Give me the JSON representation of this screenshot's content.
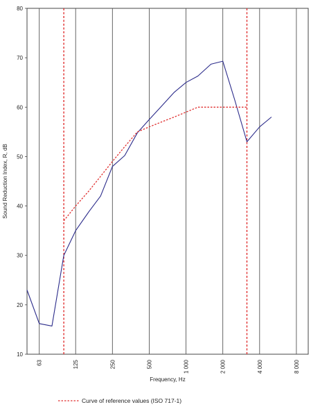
{
  "chart_data": {
    "type": "line",
    "xlabel": "Frequency, Hz",
    "ylabel": "Sound Reduction Index, R, dB",
    "ylim": [
      10,
      80
    ],
    "yticks": [
      10,
      20,
      30,
      40,
      50,
      60,
      70,
      80
    ],
    "x_scale": "log",
    "xlim": [
      50,
      10000
    ],
    "xticks": [
      {
        "value": 63,
        "label": "63"
      },
      {
        "value": 125,
        "label": "125"
      },
      {
        "value": 250,
        "label": "250"
      },
      {
        "value": 500,
        "label": "500"
      },
      {
        "value": 1000,
        "label": "1 000"
      },
      {
        "value": 2000,
        "label": "2 000"
      },
      {
        "value": 4000,
        "label": "4 000"
      },
      {
        "value": 8000,
        "label": "8 000"
      }
    ],
    "grid": {
      "vertical": true,
      "horizontal": false
    },
    "series": [
      {
        "name": "",
        "color": "#2b2b8a",
        "style": "solid",
        "x": [
          50,
          63,
          80,
          100,
          125,
          160,
          200,
          250,
          315,
          400,
          500,
          630,
          800,
          1000,
          1250,
          1600,
          2000,
          2500,
          3150,
          4000,
          5000
        ],
        "y": [
          23,
          16.2,
          15.7,
          30,
          35,
          38.8,
          42,
          48,
          50.2,
          54.8,
          57.5,
          60.2,
          63,
          65,
          66.3,
          68.7,
          69.3,
          61.5,
          53,
          56,
          58
        ]
      },
      {
        "name": "Curve of reference values (ISO 717-1)",
        "color": "#e03030",
        "style": "dotted",
        "x": [
          100,
          125,
          160,
          200,
          250,
          315,
          400,
          500,
          630,
          800,
          1000,
          1250,
          1600,
          2000,
          2500,
          3150
        ],
        "y": [
          37,
          40,
          43,
          46,
          49,
          52,
          55,
          56,
          57,
          58,
          59,
          60,
          60,
          60,
          60,
          60
        ]
      }
    ],
    "verticals": [
      {
        "x": 100,
        "color": "#e03030",
        "style": "dotted"
      },
      {
        "x": 3150,
        "color": "#e03030",
        "style": "dotted"
      }
    ],
    "legend": {
      "placement": "bottom-left",
      "entry": "Curve of reference values (ISO 717-1)"
    }
  }
}
